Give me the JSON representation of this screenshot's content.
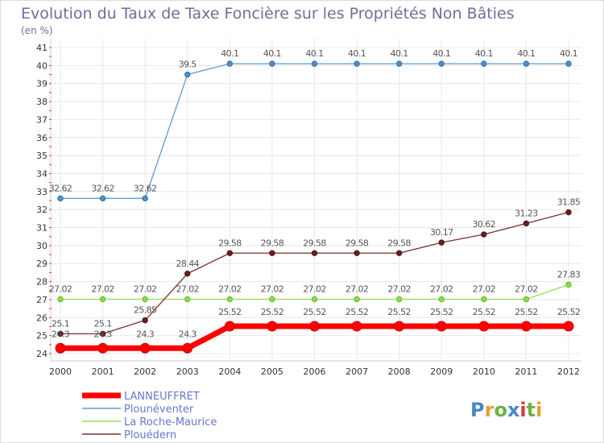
{
  "chart_data": {
    "type": "line",
    "title": "Evolution du Taux de Taxe Foncière sur les Propriétés Non Bâties",
    "subtitle": "(en %)",
    "xlabel": "",
    "ylabel": "",
    "ylim": [
      24,
      41
    ],
    "yticks": [
      24,
      25,
      26,
      27,
      28,
      29,
      30,
      31,
      32,
      33,
      34,
      35,
      36,
      37,
      38,
      39,
      40,
      41
    ],
    "categories": [
      "2000",
      "2001",
      "2002",
      "2003",
      "2004",
      "2005",
      "2006",
      "2007",
      "2008",
      "2009",
      "2010",
      "2011",
      "2012"
    ],
    "grid": true,
    "legend_position": "bottom-left",
    "series": [
      {
        "name": "LANNEUFFRET",
        "color": "#ff0000",
        "values": [
          24.3,
          24.3,
          24.3,
          24.3,
          25.52,
          25.52,
          25.52,
          25.52,
          25.52,
          25.52,
          25.52,
          25.52,
          25.52
        ],
        "labels": [
          "24.3",
          "24.3",
          "24.3",
          "24.3",
          "25.52",
          "25.52",
          "25.52",
          "25.52",
          "25.52",
          "25.52",
          "25.52",
          "25.52",
          "25.52"
        ]
      },
      {
        "name": "Plounéventer",
        "color": "#5b9bd5",
        "values": [
          32.62,
          32.62,
          32.62,
          39.5,
          40.1,
          40.1,
          40.1,
          40.1,
          40.1,
          40.1,
          40.1,
          40.1,
          40.1
        ],
        "labels": [
          "32.62",
          "32.62",
          "32.62",
          "39.5",
          "40.1",
          "40.1",
          "40.1",
          "40.1",
          "40.1",
          "40.1",
          "40.1",
          "40.1",
          "40.1"
        ]
      },
      {
        "name": "La Roche-Maurice",
        "color": "#99dd55",
        "values": [
          27.02,
          27.02,
          27.02,
          27.02,
          27.02,
          27.02,
          27.02,
          27.02,
          27.02,
          27.02,
          27.02,
          27.02,
          27.83
        ],
        "labels": [
          "27.02",
          "27.02",
          "27.02",
          "27.02",
          "27.02",
          "27.02",
          "27.02",
          "27.02",
          "27.02",
          "27.02",
          "27.02",
          "27.02",
          "27.83"
        ]
      },
      {
        "name": "Plouédern",
        "color": "#7a2e2e",
        "values": [
          25.1,
          25.1,
          25.85,
          28.44,
          29.58,
          29.58,
          29.58,
          29.58,
          29.58,
          30.17,
          30.62,
          31.23,
          31.85
        ],
        "labels": [
          "25.1",
          "25.1",
          "25.85",
          "28.44",
          "29.58",
          "29.58",
          "29.58",
          "29.58",
          "29.58",
          "30.17",
          "30.62",
          "31.23",
          "31.85"
        ]
      }
    ]
  },
  "colors": {
    "title": "#6e6e9a",
    "axis_text": "#333333",
    "grid": "#e8e8e8",
    "label": "#555555",
    "legend_text": "#6677cc"
  },
  "logo": {
    "text": "Proxiti",
    "letter_colors": [
      "#4a86c8",
      "#e8a030",
      "#6cb33f",
      "#4a86c8",
      "#d13c3c",
      "#6cb33f",
      "#e8a030"
    ]
  }
}
